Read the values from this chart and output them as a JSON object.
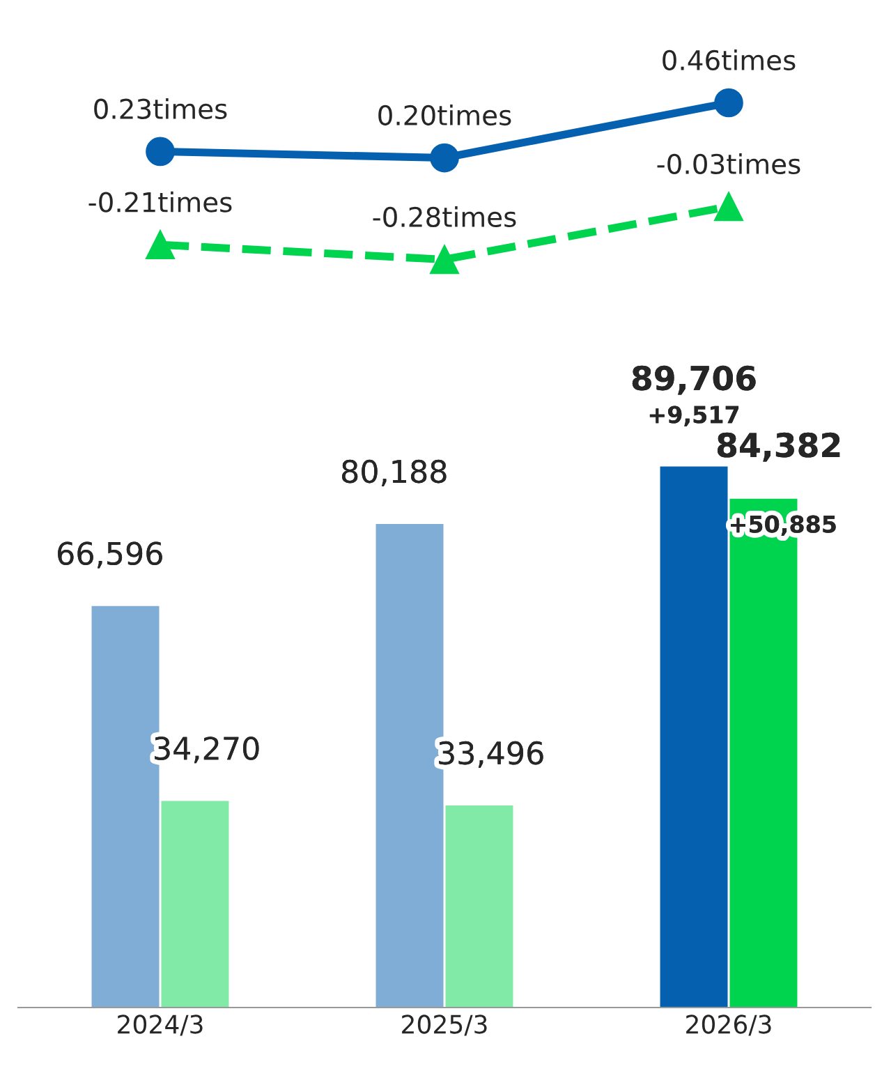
{
  "chart_data": [
    {
      "type": "line",
      "categories": [
        "2024/3",
        "2025/3",
        "2026/3"
      ],
      "tick_labels": false,
      "grid": false,
      "series": [
        {
          "color": "#0561b0",
          "marker": "circle",
          "line_style": "solid",
          "values": [
            0.23,
            0.2,
            0.46
          ],
          "value_labels": [
            "0.23times",
            "0.20times",
            "0.46times"
          ]
        },
        {
          "color": "#00d44f",
          "marker": "triangle",
          "line_style": "dashed",
          "values": [
            -0.21,
            -0.28,
            -0.03
          ],
          "value_labels": [
            "-0.21times",
            "-0.28times",
            "-0.03times"
          ]
        }
      ]
    },
    {
      "type": "bar",
      "categories": [
        "2024/3",
        "2025/3",
        "2026/3"
      ],
      "tick_labels": "x",
      "grid": false,
      "series": [
        {
          "colors": [
            "#7fadd6",
            "#7fadd6",
            "#0561b0"
          ],
          "values": [
            66596,
            80188,
            89706
          ],
          "value_labels": [
            "66,596",
            "80,188",
            "89,706"
          ]
        },
        {
          "colors": [
            "#80eaa6",
            "#80eaa6",
            "#00d44f"
          ],
          "values": [
            34270,
            33496,
            84382
          ],
          "value_labels": [
            "34,270",
            "33,496",
            "84,382"
          ]
        }
      ],
      "annotations": [
        {
          "text": "+9,517",
          "x": "2026/3",
          "y": 89706
        },
        {
          "text": "+50,885",
          "x": "2026/3",
          "y": 84382
        }
      ]
    }
  ]
}
